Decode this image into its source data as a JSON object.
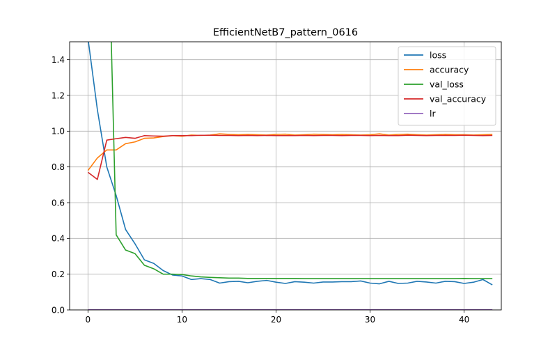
{
  "chart_data": {
    "type": "line",
    "title": "EfficientNetB7_pattern_0616",
    "xlabel": "",
    "ylabel": "",
    "xlim": [
      -1.95,
      43.95
    ],
    "ylim": [
      0,
      1.5
    ],
    "x_ticks": [
      0,
      10,
      20,
      30,
      40
    ],
    "y_ticks": [
      0.0,
      0.2,
      0.4,
      0.6,
      0.8,
      1.0,
      1.2,
      1.4
    ],
    "x_tick_labels": [
      "0",
      "10",
      "20",
      "30",
      "40"
    ],
    "y_tick_labels": [
      "0.0",
      "0.2",
      "0.4",
      "0.6",
      "0.8",
      "1.0",
      "1.2",
      "1.4"
    ],
    "grid": true,
    "legend_position": "top-right",
    "x": [
      0,
      1,
      2,
      3,
      4,
      5,
      6,
      7,
      8,
      9,
      10,
      11,
      12,
      13,
      14,
      15,
      16,
      17,
      18,
      19,
      20,
      21,
      22,
      23,
      24,
      25,
      26,
      27,
      28,
      29,
      30,
      31,
      32,
      33,
      34,
      35,
      36,
      37,
      38,
      39,
      40,
      41,
      42,
      43
    ],
    "series": [
      {
        "name": "loss",
        "color": "#1f77b4",
        "values": [
          1.52,
          1.12,
          0.8,
          0.64,
          0.45,
          0.37,
          0.28,
          0.26,
          0.22,
          0.195,
          0.19,
          0.17,
          0.175,
          0.17,
          0.15,
          0.158,
          0.16,
          0.152,
          0.16,
          0.165,
          0.155,
          0.148,
          0.158,
          0.155,
          0.15,
          0.156,
          0.156,
          0.158,
          0.158,
          0.162,
          0.15,
          0.146,
          0.16,
          0.148,
          0.15,
          0.16,
          0.156,
          0.15,
          0.16,
          0.158,
          0.148,
          0.155,
          0.17,
          0.14
        ]
      },
      {
        "name": "accuracy",
        "color": "#ff7f0e",
        "values": [
          0.78,
          0.85,
          0.895,
          0.895,
          0.93,
          0.94,
          0.96,
          0.962,
          0.97,
          0.975,
          0.972,
          0.978,
          0.976,
          0.978,
          0.985,
          0.982,
          0.98,
          0.982,
          0.98,
          0.978,
          0.982,
          0.983,
          0.978,
          0.98,
          0.983,
          0.982,
          0.98,
          0.982,
          0.98,
          0.978,
          0.98,
          0.985,
          0.978,
          0.982,
          0.983,
          0.98,
          0.978,
          0.98,
          0.982,
          0.98,
          0.98,
          0.978,
          0.98,
          0.982
        ]
      },
      {
        "name": "val_loss",
        "color": "#2ca02c",
        "values": [
          null,
          null,
          2.5,
          0.42,
          0.335,
          0.315,
          0.25,
          0.23,
          0.2,
          0.2,
          0.198,
          0.19,
          0.185,
          0.182,
          0.18,
          0.178,
          0.178,
          0.176,
          0.176,
          0.176,
          0.176,
          0.176,
          0.176,
          0.175,
          0.175,
          0.175,
          0.175,
          0.175,
          0.175,
          0.175,
          0.175,
          0.175,
          0.175,
          0.175,
          0.175,
          0.175,
          0.175,
          0.175,
          0.175,
          0.175,
          0.176,
          0.175,
          0.175,
          0.175
        ]
      },
      {
        "name": "val_accuracy",
        "color": "#d62728",
        "values": [
          0.77,
          0.73,
          0.95,
          0.958,
          0.965,
          0.96,
          0.975,
          0.973,
          0.972,
          0.975,
          0.975,
          0.975,
          0.977,
          0.977,
          0.976,
          0.976,
          0.975,
          0.976,
          0.975,
          0.976,
          0.975,
          0.975,
          0.975,
          0.976,
          0.975,
          0.976,
          0.976,
          0.975,
          0.976,
          0.976,
          0.975,
          0.976,
          0.975,
          0.975,
          0.977,
          0.976,
          0.975,
          0.976,
          0.976,
          0.976,
          0.977,
          0.976,
          0.975,
          0.976
        ]
      },
      {
        "name": "lr",
        "color": "#9467bd",
        "values": [
          0.001,
          0.001,
          0.001,
          0.001,
          0.001,
          0.001,
          0.001,
          0.001,
          0.001,
          0.001,
          0.001,
          0.001,
          0.001,
          0.001,
          0.001,
          0.001,
          0.001,
          0.001,
          0.001,
          0.001,
          0.001,
          0.001,
          0.001,
          0.001,
          0.001,
          0.001,
          0.001,
          0.001,
          0.001,
          0.001,
          0.001,
          0.001,
          0.001,
          0.001,
          0.001,
          0.001,
          0.001,
          0.001,
          0.001,
          0.001,
          0.001,
          0.001,
          0.001,
          0.001
        ]
      }
    ]
  }
}
